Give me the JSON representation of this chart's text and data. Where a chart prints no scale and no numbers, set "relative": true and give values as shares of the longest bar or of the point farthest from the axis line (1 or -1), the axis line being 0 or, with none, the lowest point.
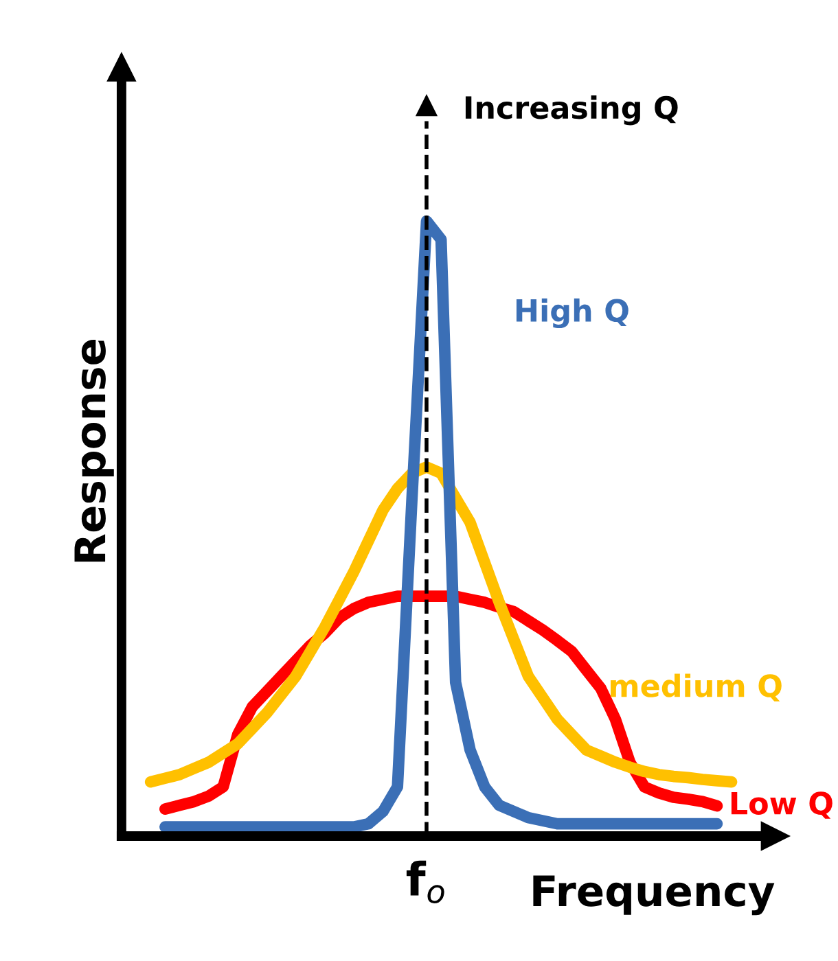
{
  "chart_data": {
    "type": "line",
    "relative": true,
    "xlabel": "Frequency",
    "ylabel": "Response",
    "categories": [
      null,
      null,
      null,
      null,
      null,
      null,
      null,
      null,
      null,
      null,
      null,
      null,
      null,
      null,
      null,
      null,
      null,
      null,
      null,
      null,
      null,
      null,
      null,
      null,
      null,
      null,
      null,
      null,
      null,
      null,
      null,
      null,
      null,
      null,
      null,
      null,
      null,
      null,
      null,
      null,
      null
    ],
    "series": [
      {
        "name": "Low Q",
        "color": "#ff0000",
        "values": [
          null,
          0.044,
          0.05,
          0.056,
          0.065,
          0.08,
          0.165,
          0.21,
          0.235,
          0.26,
          0.285,
          0.31,
          0.33,
          0.355,
          0.37,
          0.38,
          0.385,
          0.39,
          0.39,
          0.39,
          0.39,
          0.39,
          0.385,
          0.38,
          0.372,
          0.365,
          0.35,
          0.335,
          0.318,
          0.3,
          0.27,
          0.24,
          0.19,
          0.12,
          0.08,
          0.07,
          0.063,
          0.06,
          0.056,
          0.049,
          null
        ]
      },
      {
        "name": "medium Q",
        "color": "#ffc000",
        "values": [
          0.088,
          0.094,
          0.1,
          0.11,
          0.12,
          0.135,
          0.15,
          0.175,
          0.2,
          0.23,
          0.26,
          0.3,
          0.34,
          0.385,
          0.43,
          0.48,
          0.53,
          0.565,
          0.59,
          0.6,
          0.59,
          0.55,
          0.51,
          0.445,
          0.38,
          0.32,
          0.26,
          0.225,
          0.19,
          0.165,
          0.14,
          0.13,
          0.12,
          0.112,
          0.105,
          0.1,
          0.097,
          0.095,
          0.092,
          0.09,
          0.088
        ]
      },
      {
        "name": "High Q",
        "color": "#3b6fb6",
        "values": [
          null,
          0.015,
          0.015,
          0.015,
          0.015,
          0.015,
          0.015,
          0.015,
          0.015,
          0.015,
          0.015,
          0.015,
          0.015,
          0.015,
          0.015,
          0.02,
          0.04,
          0.08,
          0.55,
          1,
          0.97,
          0.25,
          0.14,
          0.08,
          0.05,
          0.04,
          0.03,
          0.025,
          0.02,
          0.02,
          0.02,
          0.02,
          0.02,
          0.02,
          0.02,
          0.02,
          0.02,
          0.02,
          0.02,
          0.02,
          null
        ]
      }
    ],
    "annotations": [
      "Increasing Q",
      "f$_{o}$"
    ],
    "line_style": "solid",
    "marker": "none",
    "grid": false,
    "legend": false
  }
}
